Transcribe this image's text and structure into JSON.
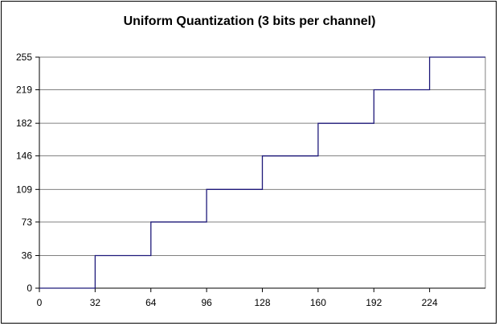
{
  "chart_data": {
    "type": "line",
    "title": "Uniform Quantization (3 bits per channel)",
    "xlabel": "",
    "ylabel": "",
    "xlim": [
      0,
      256
    ],
    "ylim": [
      0,
      255
    ],
    "x_ticks": [
      "0",
      "32",
      "64",
      "96",
      "128",
      "160",
      "192",
      "224"
    ],
    "y_ticks": [
      "0",
      "36",
      "73",
      "109",
      "146",
      "182",
      "219",
      "255"
    ],
    "grid": "horizontal",
    "legend": "none",
    "series": [
      {
        "color": "#1f1a7a",
        "x": [
          0,
          32,
          32,
          64,
          64,
          96,
          96,
          128,
          128,
          160,
          160,
          192,
          192,
          224,
          224,
          256
        ],
        "y": [
          0,
          0,
          36,
          36,
          73,
          73,
          109,
          109,
          146,
          146,
          182,
          182,
          219,
          219,
          255,
          255
        ]
      }
    ]
  }
}
